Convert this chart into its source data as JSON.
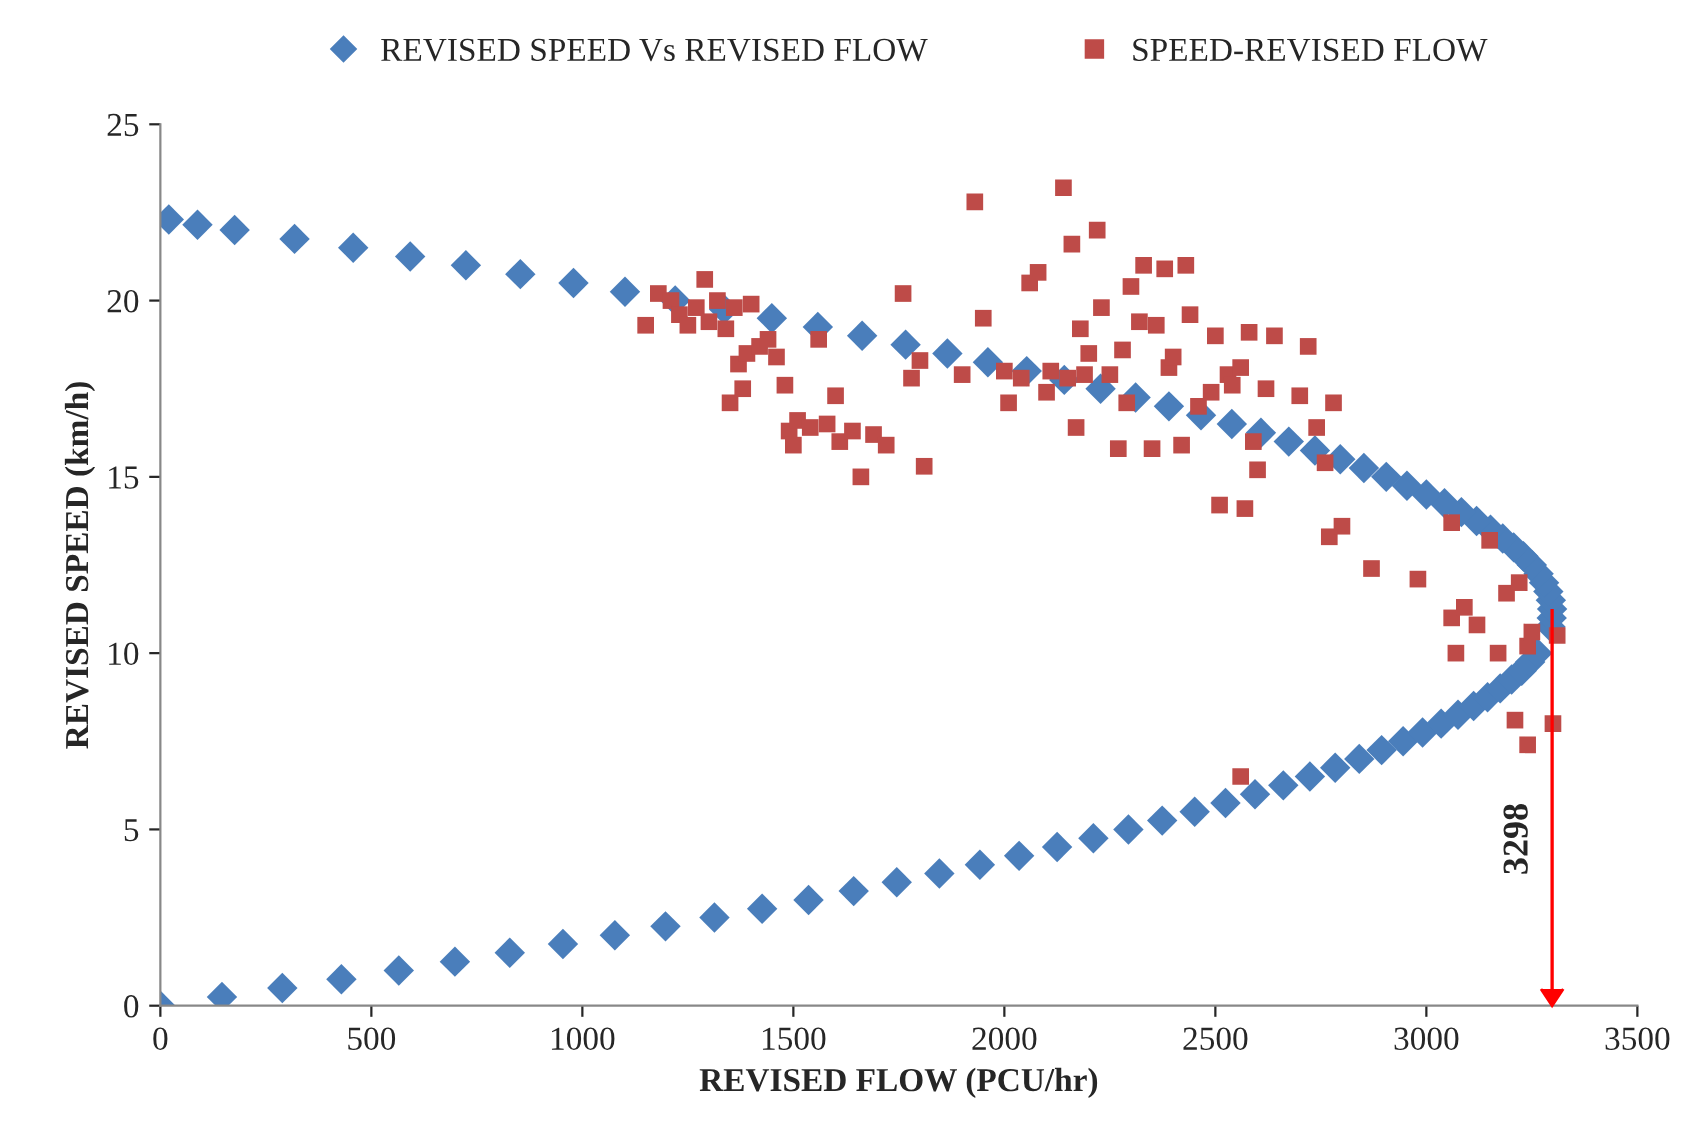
{
  "chart_data": {
    "type": "scatter",
    "xlabel": "REVISED FLOW (PCU/hr)",
    "ylabel": "REVISED SPEED (km/h)",
    "xlim": [
      0,
      3500
    ],
    "xticks": [
      0,
      500,
      1000,
      1500,
      2000,
      2500,
      3000,
      3500
    ],
    "ylim": [
      0,
      25
    ],
    "yticks": [
      0,
      5,
      10,
      15,
      20,
      25
    ],
    "grid": false,
    "legend": "top",
    "ref_lines": [
      {
        "axis": "x",
        "value": 3298,
        "label": "3298",
        "color": "#ff0000"
      }
    ],
    "series": [
      {
        "name": "REVISED SPEED Vs REVISED FLOW",
        "color": "#4a7ebb",
        "marker": "diamond",
        "x": [
          0,
          146,
          289,
          429,
          565,
          698,
          828,
          954,
          1077,
          1197,
          1313,
          1426,
          1536,
          1643,
          1745,
          1846,
          1942,
          2035,
          2125,
          2211,
          2294,
          2374,
          2451,
          2524,
          2594,
          2661,
          2724,
          2784,
          2841,
          2894,
          2945,
          2991,
          3035,
          3075,
          3112,
          3145,
          3175,
          3202,
          3226,
          3246,
          3263,
          3294,
          3297,
          3298,
          3295,
          3289,
          3279,
          3266,
          3250,
          3230,
          3207,
          3181,
          3152,
          3119,
          3083,
          3043,
          3000,
          2954,
          2905,
          2852,
          2796,
          2736,
          2674,
          2608,
          2539,
          2466,
          2390,
          2311,
          2228,
          2142,
          2053,
          1961,
          1865,
          1766,
          1663,
          1558,
          1449,
          1336,
          1220,
          1101,
          979,
          853,
          724,
          592,
          457,
          318,
          176,
          88,
          20
        ],
        "values": [
          0,
          0.25,
          0.5,
          0.75,
          1,
          1.25,
          1.5,
          1.75,
          2,
          2.25,
          2.5,
          2.75,
          3,
          3.25,
          3.5,
          3.75,
          4,
          4.25,
          4.5,
          4.75,
          5,
          5.25,
          5.5,
          5.75,
          6,
          6.25,
          6.5,
          6.75,
          7,
          7.25,
          7.5,
          7.75,
          8,
          8.25,
          8.5,
          8.75,
          9,
          9.25,
          9.5,
          9.75,
          10,
          10.75,
          11,
          11.25,
          11.5,
          11.75,
          12,
          12.25,
          12.5,
          12.75,
          13,
          13.25,
          13.5,
          13.75,
          14,
          14.25,
          14.5,
          14.75,
          15,
          15.25,
          15.5,
          15.75,
          16,
          16.25,
          16.5,
          16.75,
          17,
          17.25,
          17.5,
          17.75,
          18,
          18.25,
          18.5,
          18.75,
          19,
          19.25,
          19.5,
          19.75,
          20,
          20.25,
          20.5,
          20.75,
          21,
          21.25,
          21.5,
          21.75,
          22,
          22.15,
          22.3
        ]
      },
      {
        "name": "SPEED-REVISED FLOW",
        "color": "#be4b48",
        "marker": "square",
        "x": [
          1150,
          1180,
          1210,
          1230,
          1250,
          1270,
          1290,
          1300,
          1320,
          1340,
          1350,
          1360,
          1370,
          1380,
          1390,
          1400,
          1420,
          1440,
          1460,
          1480,
          1490,
          1500,
          1510,
          1540,
          1560,
          1580,
          1600,
          1610,
          1640,
          1660,
          1690,
          1720,
          1760,
          1780,
          1800,
          1810,
          1900,
          1930,
          1950,
          2000,
          2010,
          2040,
          2060,
          2080,
          2100,
          2110,
          2140,
          2150,
          2160,
          2170,
          2180,
          2190,
          2200,
          2220,
          2230,
          2250,
          2270,
          2280,
          2290,
          2300,
          2320,
          2330,
          2350,
          2360,
          2380,
          2390,
          2400,
          2420,
          2430,
          2440,
          2460,
          2490,
          2500,
          2510,
          2530,
          2540,
          2560,
          2570,
          2580,
          2590,
          2600,
          2620,
          2640,
          2700,
          2720,
          2740,
          2760,
          2780,
          2770,
          2800,
          2870,
          2980,
          3060,
          3060,
          3090,
          3120,
          3150,
          3170,
          3190,
          3220,
          3240,
          3250,
          3210,
          3240,
          3300,
          3310,
          2560,
          3070
        ],
        "values": [
          19.3,
          20.2,
          20.0,
          19.6,
          19.3,
          19.8,
          20.6,
          19.4,
          20.0,
          19.2,
          17.1,
          19.8,
          18.2,
          17.5,
          18.5,
          19.9,
          18.7,
          18.9,
          18.4,
          17.6,
          16.3,
          15.9,
          16.6,
          16.4,
          18.9,
          16.5,
          17.3,
          16.0,
          16.3,
          15.0,
          16.2,
          15.9,
          20.2,
          17.8,
          18.3,
          15.3,
          17.9,
          22.8,
          19.5,
          18.0,
          17.1,
          17.8,
          20.5,
          20.8,
          17.4,
          18.0,
          23.2,
          17.8,
          21.6,
          16.4,
          19.2,
          17.9,
          18.5,
          22.0,
          19.8,
          17.9,
          15.8,
          18.6,
          17.1,
          20.4,
          19.4,
          21.0,
          15.8,
          19.3,
          20.9,
          18.1,
          18.4,
          15.9,
          21.0,
          19.6,
          17.0,
          17.4,
          19.0,
          14.2,
          17.9,
          17.6,
          18.1,
          14.1,
          19.1,
          16.0,
          15.2,
          17.5,
          19.0,
          17.3,
          18.7,
          16.4,
          15.4,
          17.1,
          13.3,
          13.6,
          12.4,
          12.1,
          13.7,
          11.0,
          11.3,
          10.8,
          13.2,
          10.0,
          11.7,
          12.0,
          10.2,
          10.6,
          8.1,
          7.4,
          8.0,
          10.5,
          6.5,
          10.0
        ]
      }
    ]
  }
}
